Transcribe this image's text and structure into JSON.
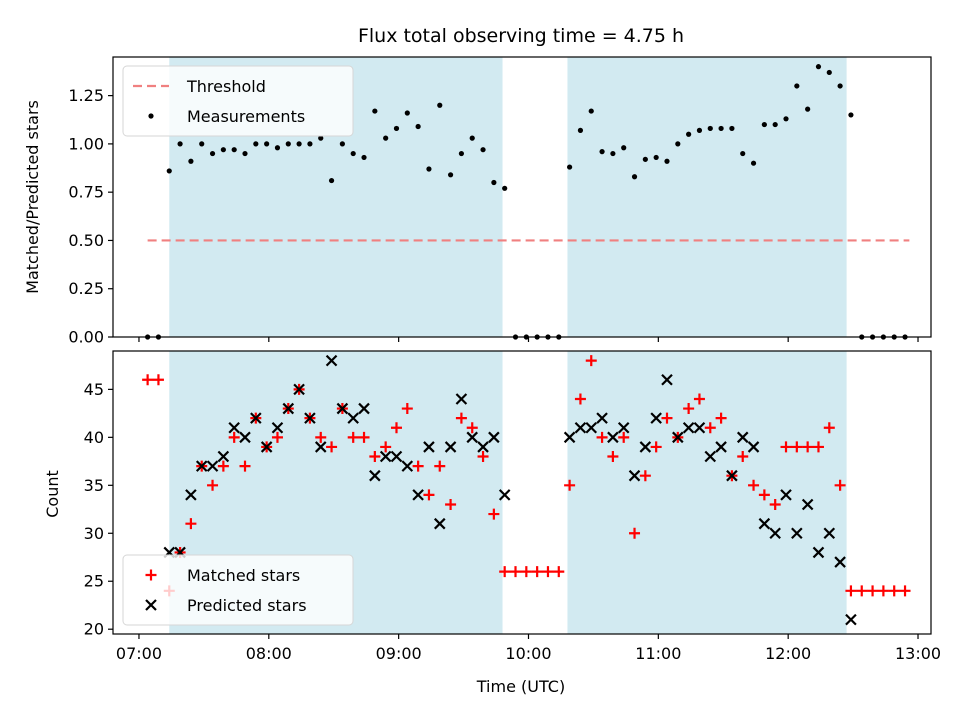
{
  "chart_data": [
    {
      "type": "scatter",
      "title": "Flux total observing time = 4.75 h",
      "xlabel": "",
      "ylabel": "Matched/Predicted stars",
      "ylim": [
        0,
        1.45
      ],
      "yticks": [
        "0.00",
        "0.25",
        "0.50",
        "0.75",
        "1.00",
        "1.25"
      ],
      "xlim": [
        "06:48",
        "13:06"
      ],
      "grid": false,
      "legend_position": "upper left",
      "shaded_intervals": [
        [
          "07:14",
          "09:48"
        ],
        [
          "10:18",
          "12:27"
        ]
      ],
      "shade_color": "#add8e6",
      "threshold": {
        "name": "Threshold",
        "value": 0.5,
        "x_range": [
          "07:04",
          "12:56"
        ],
        "color": "#f08080",
        "style": "dashed"
      },
      "series": [
        {
          "name": "Measurements",
          "color": "#000000",
          "marker": "dot",
          "points": [
            {
              "x": "07:04",
              "y": 0.0
            },
            {
              "x": "07:09",
              "y": 0.0
            },
            {
              "x": "07:14",
              "y": 0.86
            },
            {
              "x": "07:19",
              "y": 1.0
            },
            {
              "x": "07:24",
              "y": 0.91
            },
            {
              "x": "07:29",
              "y": 1.0
            },
            {
              "x": "07:34",
              "y": 0.95
            },
            {
              "x": "07:39",
              "y": 0.97
            },
            {
              "x": "07:44",
              "y": 0.97
            },
            {
              "x": "07:49",
              "y": 0.95
            },
            {
              "x": "07:54",
              "y": 1.0
            },
            {
              "x": "07:59",
              "y": 1.0
            },
            {
              "x": "08:04",
              "y": 0.98
            },
            {
              "x": "08:09",
              "y": 1.0
            },
            {
              "x": "08:14",
              "y": 1.0
            },
            {
              "x": "08:19",
              "y": 1.0
            },
            {
              "x": "08:24",
              "y": 1.03
            },
            {
              "x": "08:29",
              "y": 0.81
            },
            {
              "x": "08:34",
              "y": 1.0
            },
            {
              "x": "08:39",
              "y": 0.95
            },
            {
              "x": "08:44",
              "y": 0.93
            },
            {
              "x": "08:49",
              "y": 1.17
            },
            {
              "x": "08:54",
              "y": 1.03
            },
            {
              "x": "08:59",
              "y": 1.08
            },
            {
              "x": "09:04",
              "y": 1.16
            },
            {
              "x": "09:09",
              "y": 1.09
            },
            {
              "x": "09:14",
              "y": 0.87
            },
            {
              "x": "09:19",
              "y": 1.2
            },
            {
              "x": "09:24",
              "y": 0.84
            },
            {
              "x": "09:29",
              "y": 0.95
            },
            {
              "x": "09:34",
              "y": 1.03
            },
            {
              "x": "09:39",
              "y": 0.97
            },
            {
              "x": "09:44",
              "y": 0.8
            },
            {
              "x": "09:49",
              "y": 0.77
            },
            {
              "x": "09:54",
              "y": 0.0
            },
            {
              "x": "09:59",
              "y": 0.0
            },
            {
              "x": "10:04",
              "y": 0.0
            },
            {
              "x": "10:09",
              "y": 0.0
            },
            {
              "x": "10:14",
              "y": 0.0
            },
            {
              "x": "10:19",
              "y": 0.88
            },
            {
              "x": "10:24",
              "y": 1.07
            },
            {
              "x": "10:29",
              "y": 1.17
            },
            {
              "x": "10:34",
              "y": 0.96
            },
            {
              "x": "10:39",
              "y": 0.95
            },
            {
              "x": "10:44",
              "y": 0.98
            },
            {
              "x": "10:49",
              "y": 0.83
            },
            {
              "x": "10:54",
              "y": 0.92
            },
            {
              "x": "10:59",
              "y": 0.93
            },
            {
              "x": "11:04",
              "y": 0.91
            },
            {
              "x": "11:09",
              "y": 1.0
            },
            {
              "x": "11:14",
              "y": 1.05
            },
            {
              "x": "11:19",
              "y": 1.07
            },
            {
              "x": "11:24",
              "y": 1.08
            },
            {
              "x": "11:29",
              "y": 1.08
            },
            {
              "x": "11:34",
              "y": 1.08
            },
            {
              "x": "11:39",
              "y": 0.95
            },
            {
              "x": "11:44",
              "y": 0.9
            },
            {
              "x": "11:49",
              "y": 1.1
            },
            {
              "x": "11:54",
              "y": 1.1
            },
            {
              "x": "11:59",
              "y": 1.13
            },
            {
              "x": "12:04",
              "y": 1.3
            },
            {
              "x": "12:09",
              "y": 1.18
            },
            {
              "x": "12:14",
              "y": 1.4
            },
            {
              "x": "12:19",
              "y": 1.37
            },
            {
              "x": "12:24",
              "y": 1.3
            },
            {
              "x": "12:29",
              "y": 1.15
            },
            {
              "x": "12:34",
              "y": 0.0
            },
            {
              "x": "12:39",
              "y": 0.0
            },
            {
              "x": "12:44",
              "y": 0.0
            },
            {
              "x": "12:49",
              "y": 0.0
            },
            {
              "x": "12:54",
              "y": 0.0
            }
          ]
        }
      ]
    },
    {
      "type": "scatter",
      "title": "",
      "xlabel": "Time (UTC)",
      "ylabel": "Count",
      "ylim": [
        19.5,
        49
      ],
      "yticks": [
        "20",
        "25",
        "30",
        "35",
        "40",
        "45"
      ],
      "xlim": [
        "06:48",
        "13:06"
      ],
      "xticks": [
        "07:00",
        "08:00",
        "09:00",
        "10:00",
        "11:00",
        "12:00",
        "13:00"
      ],
      "grid": false,
      "legend_position": "lower left",
      "shaded_intervals": [
        [
          "07:14",
          "09:48"
        ],
        [
          "10:18",
          "12:27"
        ]
      ],
      "shade_color": "#add8e6",
      "series": [
        {
          "name": "Matched stars",
          "color": "#ff0000",
          "marker": "plus",
          "points": [
            {
              "x": "07:04",
              "y": 46
            },
            {
              "x": "07:09",
              "y": 46
            },
            {
              "x": "07:14",
              "y": 24
            },
            {
              "x": "07:19",
              "y": 28
            },
            {
              "x": "07:24",
              "y": 31
            },
            {
              "x": "07:29",
              "y": 37
            },
            {
              "x": "07:34",
              "y": 35
            },
            {
              "x": "07:39",
              "y": 37
            },
            {
              "x": "07:44",
              "y": 40
            },
            {
              "x": "07:49",
              "y": 37
            },
            {
              "x": "07:54",
              "y": 42
            },
            {
              "x": "07:59",
              "y": 39
            },
            {
              "x": "08:04",
              "y": 40
            },
            {
              "x": "08:09",
              "y": 43
            },
            {
              "x": "08:14",
              "y": 45
            },
            {
              "x": "08:19",
              "y": 42
            },
            {
              "x": "08:24",
              "y": 40
            },
            {
              "x": "08:29",
              "y": 39
            },
            {
              "x": "08:34",
              "y": 43
            },
            {
              "x": "08:39",
              "y": 40
            },
            {
              "x": "08:44",
              "y": 40
            },
            {
              "x": "08:49",
              "y": 38
            },
            {
              "x": "08:54",
              "y": 39
            },
            {
              "x": "08:59",
              "y": 41
            },
            {
              "x": "09:04",
              "y": 43
            },
            {
              "x": "09:09",
              "y": 37
            },
            {
              "x": "09:14",
              "y": 34
            },
            {
              "x": "09:19",
              "y": 37
            },
            {
              "x": "09:24",
              "y": 33
            },
            {
              "x": "09:29",
              "y": 42
            },
            {
              "x": "09:34",
              "y": 41
            },
            {
              "x": "09:39",
              "y": 38
            },
            {
              "x": "09:44",
              "y": 32
            },
            {
              "x": "09:49",
              "y": 26
            },
            {
              "x": "09:54",
              "y": 26
            },
            {
              "x": "09:59",
              "y": 26
            },
            {
              "x": "10:04",
              "y": 26
            },
            {
              "x": "10:09",
              "y": 26
            },
            {
              "x": "10:14",
              "y": 26
            },
            {
              "x": "10:19",
              "y": 35
            },
            {
              "x": "10:24",
              "y": 44
            },
            {
              "x": "10:29",
              "y": 48
            },
            {
              "x": "10:34",
              "y": 40
            },
            {
              "x": "10:39",
              "y": 38
            },
            {
              "x": "10:44",
              "y": 40
            },
            {
              "x": "10:49",
              "y": 30
            },
            {
              "x": "10:54",
              "y": 36
            },
            {
              "x": "10:59",
              "y": 39
            },
            {
              "x": "11:04",
              "y": 42
            },
            {
              "x": "11:09",
              "y": 40
            },
            {
              "x": "11:14",
              "y": 43
            },
            {
              "x": "11:19",
              "y": 44
            },
            {
              "x": "11:24",
              "y": 41
            },
            {
              "x": "11:29",
              "y": 42
            },
            {
              "x": "11:34",
              "y": 36
            },
            {
              "x": "11:39",
              "y": 38
            },
            {
              "x": "11:44",
              "y": 35
            },
            {
              "x": "11:49",
              "y": 34
            },
            {
              "x": "11:54",
              "y": 33
            },
            {
              "x": "11:59",
              "y": 39
            },
            {
              "x": "12:04",
              "y": 39
            },
            {
              "x": "12:09",
              "y": 39
            },
            {
              "x": "12:14",
              "y": 39
            },
            {
              "x": "12:19",
              "y": 41
            },
            {
              "x": "12:24",
              "y": 35
            },
            {
              "x": "12:29",
              "y": 24
            },
            {
              "x": "12:34",
              "y": 24
            },
            {
              "x": "12:39",
              "y": 24
            },
            {
              "x": "12:44",
              "y": 24
            },
            {
              "x": "12:49",
              "y": 24
            },
            {
              "x": "12:54",
              "y": 24
            }
          ]
        },
        {
          "name": "Predicted stars",
          "color": "#000000",
          "marker": "x",
          "points": [
            {
              "x": "07:14",
              "y": 28
            },
            {
              "x": "07:19",
              "y": 28
            },
            {
              "x": "07:24",
              "y": 34
            },
            {
              "x": "07:29",
              "y": 37
            },
            {
              "x": "07:34",
              "y": 37
            },
            {
              "x": "07:39",
              "y": 38
            },
            {
              "x": "07:44",
              "y": 41
            },
            {
              "x": "07:49",
              "y": 40
            },
            {
              "x": "07:54",
              "y": 42
            },
            {
              "x": "07:59",
              "y": 39
            },
            {
              "x": "08:04",
              "y": 41
            },
            {
              "x": "08:09",
              "y": 43
            },
            {
              "x": "08:14",
              "y": 45
            },
            {
              "x": "08:19",
              "y": 42
            },
            {
              "x": "08:24",
              "y": 39
            },
            {
              "x": "08:29",
              "y": 48
            },
            {
              "x": "08:34",
              "y": 43
            },
            {
              "x": "08:39",
              "y": 42
            },
            {
              "x": "08:44",
              "y": 43
            },
            {
              "x": "08:49",
              "y": 36
            },
            {
              "x": "08:54",
              "y": 38
            },
            {
              "x": "08:59",
              "y": 38
            },
            {
              "x": "09:04",
              "y": 37
            },
            {
              "x": "09:09",
              "y": 34
            },
            {
              "x": "09:14",
              "y": 39
            },
            {
              "x": "09:19",
              "y": 31
            },
            {
              "x": "09:24",
              "y": 39
            },
            {
              "x": "09:29",
              "y": 44
            },
            {
              "x": "09:34",
              "y": 40
            },
            {
              "x": "09:39",
              "y": 39
            },
            {
              "x": "09:44",
              "y": 40
            },
            {
              "x": "09:49",
              "y": 34
            },
            {
              "x": "10:19",
              "y": 40
            },
            {
              "x": "10:24",
              "y": 41
            },
            {
              "x": "10:29",
              "y": 41
            },
            {
              "x": "10:34",
              "y": 42
            },
            {
              "x": "10:39",
              "y": 40
            },
            {
              "x": "10:44",
              "y": 41
            },
            {
              "x": "10:49",
              "y": 36
            },
            {
              "x": "10:54",
              "y": 39
            },
            {
              "x": "10:59",
              "y": 42
            },
            {
              "x": "11:04",
              "y": 46
            },
            {
              "x": "11:09",
              "y": 40
            },
            {
              "x": "11:14",
              "y": 41
            },
            {
              "x": "11:19",
              "y": 41
            },
            {
              "x": "11:24",
              "y": 38
            },
            {
              "x": "11:29",
              "y": 39
            },
            {
              "x": "11:34",
              "y": 36
            },
            {
              "x": "11:39",
              "y": 40
            },
            {
              "x": "11:44",
              "y": 39
            },
            {
              "x": "11:49",
              "y": 31
            },
            {
              "x": "11:54",
              "y": 30
            },
            {
              "x": "11:59",
              "y": 34
            },
            {
              "x": "12:04",
              "y": 30
            },
            {
              "x": "12:09",
              "y": 33
            },
            {
              "x": "12:14",
              "y": 28
            },
            {
              "x": "12:19",
              "y": 30
            },
            {
              "x": "12:24",
              "y": 27
            },
            {
              "x": "12:29",
              "y": 21
            }
          ]
        }
      ]
    }
  ]
}
